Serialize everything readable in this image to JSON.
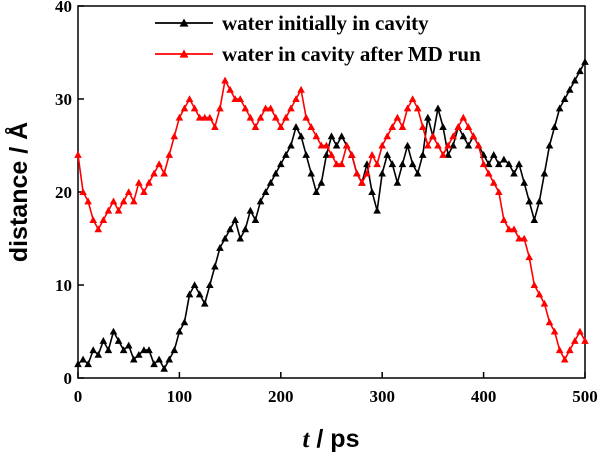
{
  "chart_data": {
    "type": "line",
    "title": "",
    "xlabel_var": "t",
    "xlabel_unit": " / ps",
    "ylabel": "distance / Å",
    "xlim": [
      0,
      500
    ],
    "ylim": [
      0,
      40
    ],
    "x_ticks": [
      "0",
      "100",
      "200",
      "300",
      "400",
      "500"
    ],
    "y_ticks": [
      "0",
      "10",
      "20",
      "30",
      "40"
    ],
    "grid": false,
    "legend_position": "top-right",
    "series": [
      {
        "name": "water initially in cavity",
        "color": "#000000",
        "marker": "triangle",
        "x": [
          0,
          5,
          10,
          15,
          20,
          25,
          30,
          35,
          40,
          45,
          50,
          55,
          60,
          65,
          70,
          75,
          80,
          85,
          90,
          95,
          100,
          105,
          110,
          115,
          120,
          125,
          130,
          135,
          140,
          145,
          150,
          155,
          160,
          165,
          170,
          175,
          180,
          185,
          190,
          195,
          200,
          205,
          210,
          215,
          220,
          225,
          230,
          235,
          240,
          245,
          250,
          255,
          260,
          265,
          270,
          275,
          280,
          285,
          290,
          295,
          300,
          305,
          310,
          315,
          320,
          325,
          330,
          335,
          340,
          345,
          350,
          355,
          360,
          365,
          370,
          375,
          380,
          385,
          390,
          395,
          400,
          405,
          410,
          415,
          420,
          425,
          430,
          435,
          440,
          445,
          450,
          455,
          460,
          465,
          470,
          475,
          480,
          485,
          490,
          495,
          500
        ],
        "y": [
          1.5,
          2,
          1.5,
          3,
          2.5,
          4,
          3,
          5,
          4,
          3,
          3.5,
          2,
          2.5,
          3,
          3,
          1.5,
          2,
          1,
          2,
          3,
          5,
          6,
          9,
          10,
          9,
          8,
          10,
          12,
          14,
          15,
          16,
          17,
          15,
          16,
          18,
          17,
          19,
          20,
          21,
          22,
          23,
          24,
          25,
          27,
          26,
          24,
          22,
          20,
          21,
          24,
          26,
          25,
          26,
          25,
          24,
          22,
          21,
          23,
          20,
          18,
          22,
          24,
          23,
          21,
          23,
          25,
          23,
          22,
          24,
          28,
          26,
          29,
          27,
          24,
          25,
          27,
          26,
          25,
          26,
          25,
          24,
          23,
          24,
          23,
          23.5,
          23,
          22,
          23,
          21,
          19,
          17,
          19,
          22,
          25,
          27,
          29,
          30,
          31,
          32,
          33,
          34
        ]
      },
      {
        "name": "water in cavity after MD run",
        "color": "#ff0000",
        "marker": "triangle",
        "x": [
          0,
          5,
          10,
          15,
          20,
          25,
          30,
          35,
          40,
          45,
          50,
          55,
          60,
          65,
          70,
          75,
          80,
          85,
          90,
          95,
          100,
          105,
          110,
          115,
          120,
          125,
          130,
          135,
          140,
          145,
          150,
          155,
          160,
          165,
          170,
          175,
          180,
          185,
          190,
          195,
          200,
          205,
          210,
          215,
          220,
          225,
          230,
          235,
          240,
          245,
          250,
          255,
          260,
          265,
          270,
          275,
          280,
          285,
          290,
          295,
          300,
          305,
          310,
          315,
          320,
          325,
          330,
          335,
          340,
          345,
          350,
          355,
          360,
          365,
          370,
          375,
          380,
          385,
          390,
          395,
          400,
          405,
          410,
          415,
          420,
          425,
          430,
          435,
          440,
          445,
          450,
          455,
          460,
          465,
          470,
          475,
          480,
          485,
          490,
          495,
          500
        ],
        "y": [
          24,
          20,
          19,
          17,
          16,
          17,
          18,
          19,
          18,
          19,
          20,
          19,
          21,
          20,
          21,
          22,
          23,
          22,
          24,
          26,
          28,
          29,
          30,
          29,
          28,
          28,
          28,
          27,
          29,
          32,
          31,
          30,
          30,
          29,
          28,
          27,
          28,
          29,
          29,
          28,
          27,
          28,
          29,
          30,
          31,
          28,
          27,
          26,
          25,
          25,
          24,
          23,
          23,
          25,
          24,
          22,
          21,
          22,
          24,
          23,
          25,
          26,
          27,
          28,
          27,
          29,
          30,
          29,
          27,
          25,
          26,
          25,
          24,
          25,
          26,
          27,
          28,
          27,
          26,
          25,
          23,
          22,
          21,
          20,
          17,
          16,
          16,
          15,
          15,
          13,
          10,
          9,
          8,
          6,
          5,
          3,
          2,
          3,
          4,
          5,
          4
        ]
      }
    ]
  }
}
